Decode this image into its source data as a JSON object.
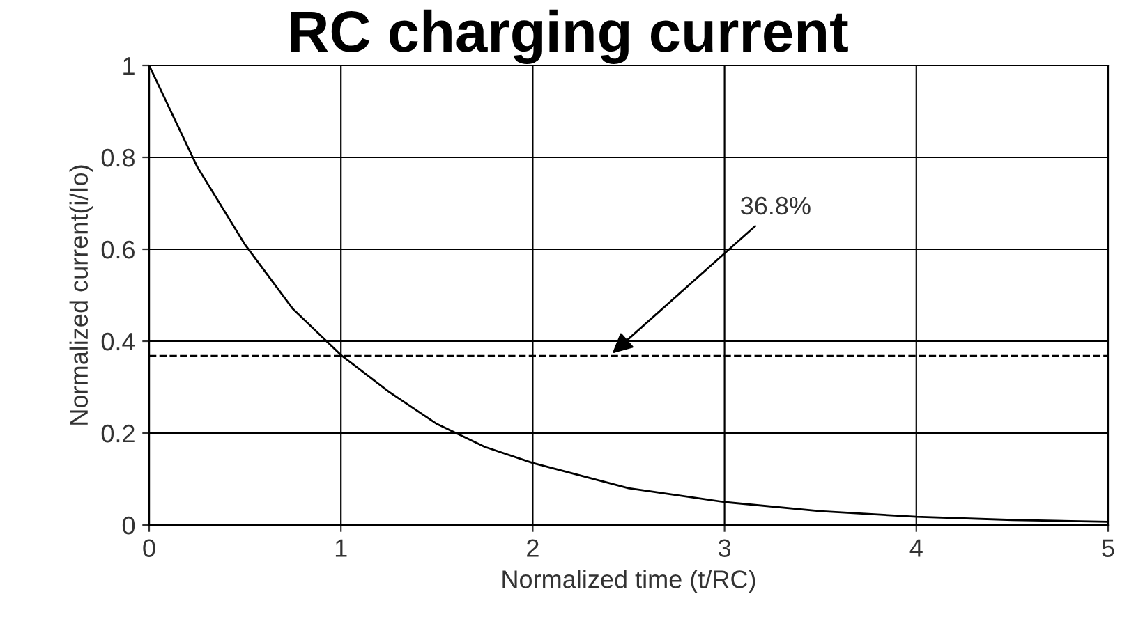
{
  "chart_data": {
    "type": "line",
    "title": "RC charging current",
    "xlabel": "Normalized time (t/RC)",
    "ylabel": "Normalized current(i/Io)",
    "x": [
      0,
      0.25,
      0.5,
      0.75,
      1,
      1.25,
      1.5,
      1.75,
      2,
      2.5,
      3,
      3.5,
      4,
      4.5,
      5
    ],
    "series": [
      {
        "color": "#000000",
        "values": [
          1,
          0.78,
          0.61,
          0.47,
          0.37,
          0.29,
          0.22,
          0.17,
          0.135,
          0.08,
          0.05,
          0.03,
          0.018,
          0.011,
          0.007
        ]
      }
    ],
    "xlim": [
      0,
      5
    ],
    "xticks": [
      0,
      1,
      2,
      3,
      4,
      5
    ],
    "ylim": [
      0,
      1
    ],
    "yticks": [
      0,
      0.2,
      0.4,
      0.6,
      0.8,
      1
    ],
    "grid": true,
    "legend": false,
    "marker": "none",
    "line_style": "solid",
    "ref_lines": [
      {
        "axis": "y",
        "value": 0.368,
        "line_style": "dashed",
        "color": "#000000"
      }
    ],
    "annotations": [
      {
        "text": "36.8%",
        "x": 2.4,
        "y": 0.368
      }
    ]
  }
}
